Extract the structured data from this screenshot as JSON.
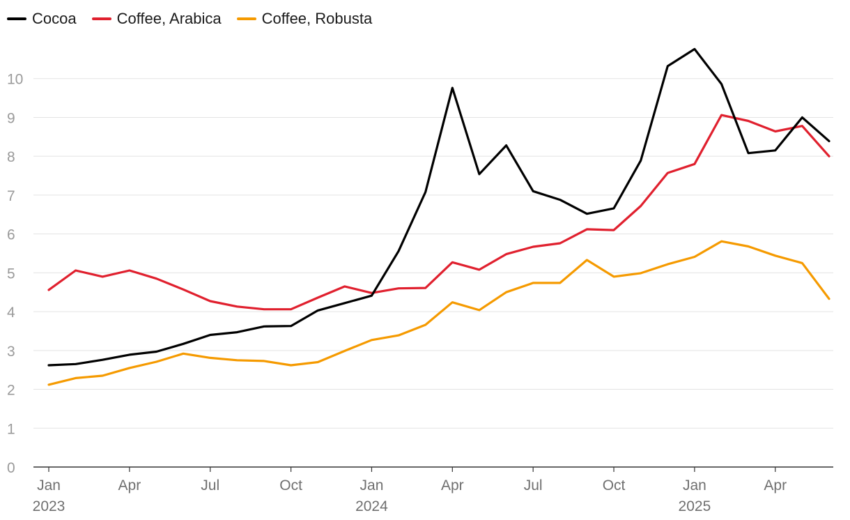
{
  "chart_data": {
    "type": "line",
    "title": "",
    "xlabel": "",
    "ylabel": "",
    "ylim": [
      0,
      11
    ],
    "yticks": [
      0,
      1,
      2,
      3,
      4,
      5,
      6,
      7,
      8,
      9,
      10
    ],
    "grid": true,
    "legend_position": "top-left",
    "x": [
      "2023-01",
      "2023-02",
      "2023-03",
      "2023-04",
      "2023-05",
      "2023-06",
      "2023-07",
      "2023-08",
      "2023-09",
      "2023-10",
      "2023-11",
      "2023-12",
      "2024-01",
      "2024-02",
      "2024-03",
      "2024-04",
      "2024-05",
      "2024-06",
      "2024-07",
      "2024-08",
      "2024-09",
      "2024-10",
      "2024-11",
      "2024-12",
      "2025-01",
      "2025-02",
      "2025-03",
      "2025-04",
      "2025-05",
      "2025-06"
    ],
    "x_ticks": [
      {
        "x": "2023-01",
        "label": "Jan",
        "year": "2023"
      },
      {
        "x": "2023-04",
        "label": "Apr",
        "year": ""
      },
      {
        "x": "2023-07",
        "label": "Jul",
        "year": ""
      },
      {
        "x": "2023-10",
        "label": "Oct",
        "year": ""
      },
      {
        "x": "2024-01",
        "label": "Jan",
        "year": "2024"
      },
      {
        "x": "2024-04",
        "label": "Apr",
        "year": ""
      },
      {
        "x": "2024-07",
        "label": "Jul",
        "year": ""
      },
      {
        "x": "2024-10",
        "label": "Oct",
        "year": ""
      },
      {
        "x": "2025-01",
        "label": "Jan",
        "year": "2025"
      },
      {
        "x": "2025-04",
        "label": "Apr",
        "year": ""
      }
    ],
    "series": [
      {
        "name": "Cocoa",
        "color": "#000000",
        "values": [
          2.62,
          2.65,
          2.76,
          2.89,
          2.97,
          3.17,
          3.4,
          3.47,
          3.62,
          3.63,
          4.03,
          4.22,
          4.41,
          5.56,
          7.08,
          9.76,
          7.54,
          8.28,
          7.1,
          6.88,
          6.52,
          6.66,
          7.89,
          10.32,
          10.76,
          9.86,
          8.08,
          8.15,
          9.0,
          8.39
        ]
      },
      {
        "name": "Coffee, Arabica",
        "color": "#e0202e",
        "values": [
          4.56,
          5.06,
          4.9,
          5.06,
          4.85,
          4.57,
          4.27,
          4.13,
          4.06,
          4.06,
          4.36,
          4.65,
          4.48,
          4.6,
          4.61,
          5.27,
          5.08,
          5.48,
          5.67,
          5.76,
          6.12,
          6.1,
          6.72,
          7.57,
          7.8,
          9.06,
          8.91,
          8.64,
          8.78,
          8.0
        ]
      },
      {
        "name": "Coffee, Robusta",
        "color": "#f59a00",
        "values": [
          2.12,
          2.29,
          2.35,
          2.55,
          2.71,
          2.92,
          2.81,
          2.75,
          2.73,
          2.62,
          2.7,
          2.99,
          3.27,
          3.39,
          3.66,
          4.24,
          4.04,
          4.5,
          4.74,
          4.74,
          5.33,
          4.9,
          4.99,
          5.22,
          5.41,
          5.81,
          5.68,
          5.44,
          5.25,
          4.33
        ]
      }
    ]
  }
}
